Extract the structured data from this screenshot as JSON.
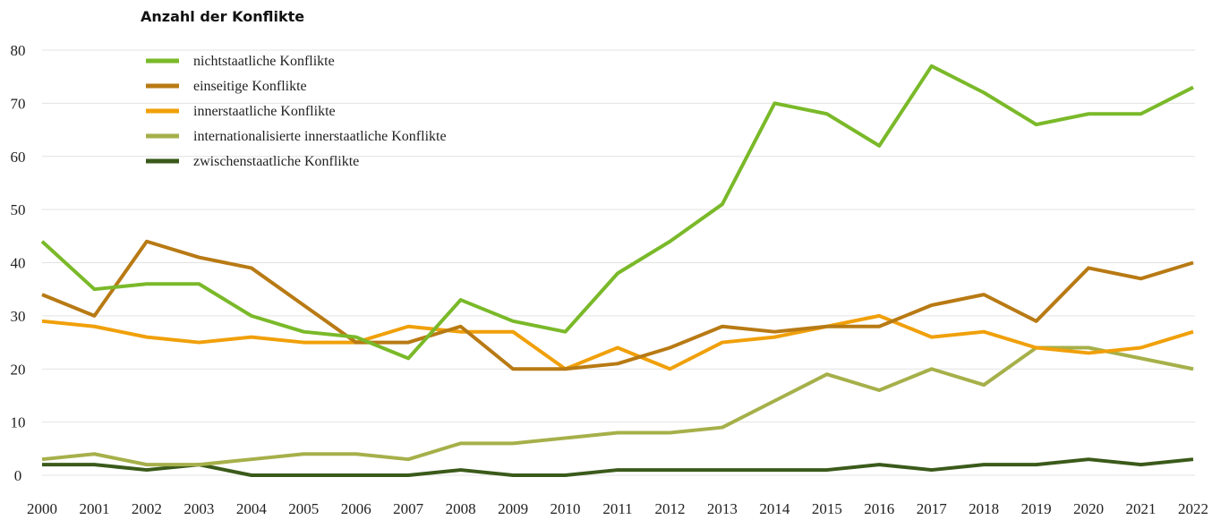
{
  "chart_data": {
    "type": "line",
    "title": "Anzahl der Konflikte",
    "x": [
      "2000",
      "2001",
      "2002",
      "2003",
      "2004",
      "2005",
      "2006",
      "2007",
      "2008",
      "2009",
      "2010",
      "2011",
      "2012",
      "2013",
      "2014",
      "2015",
      "2016",
      "2017",
      "2018",
      "2019",
      "2020",
      "2021",
      "2022"
    ],
    "series": [
      {
        "name": "nichtstaatliche Konflikte",
        "color": "#7ab929",
        "values": [
          44,
          35,
          36,
          36,
          30,
          27,
          26,
          22,
          33,
          29,
          27,
          38,
          44,
          51,
          70,
          68,
          62,
          77,
          72,
          66,
          68,
          68,
          73
        ]
      },
      {
        "name": "einseitige Konflikte",
        "color": "#b87a14",
        "values": [
          34,
          30,
          44,
          41,
          39,
          32,
          25,
          25,
          28,
          20,
          20,
          21,
          24,
          28,
          27,
          28,
          28,
          32,
          34,
          29,
          39,
          37,
          40
        ]
      },
      {
        "name": "innerstaatliche Konflikte",
        "color": "#f0a00a",
        "values": [
          29,
          28,
          26,
          25,
          26,
          25,
          25,
          28,
          27,
          27,
          20,
          24,
          20,
          25,
          26,
          28,
          30,
          26,
          27,
          24,
          23,
          24,
          27
        ]
      },
      {
        "name": "internationalisierte innerstaatliche Konflikte",
        "color": "#a6b04a",
        "values": [
          3,
          4,
          2,
          2,
          3,
          4,
          4,
          3,
          6,
          6,
          7,
          8,
          8,
          9,
          14,
          19,
          16,
          20,
          17,
          24,
          24,
          22,
          20
        ]
      },
      {
        "name": "zwischenstaatliche Konflikte",
        "color": "#3a5a1a",
        "values": [
          2,
          2,
          1,
          2,
          0,
          0,
          0,
          0,
          1,
          0,
          0,
          1,
          1,
          1,
          1,
          1,
          2,
          1,
          2,
          2,
          3,
          2,
          3
        ]
      }
    ],
    "ylim": [
      0,
      80
    ],
    "yticks": [
      0,
      10,
      20,
      30,
      40,
      50,
      60,
      70,
      80
    ],
    "grid": true,
    "legend": "top-left"
  }
}
